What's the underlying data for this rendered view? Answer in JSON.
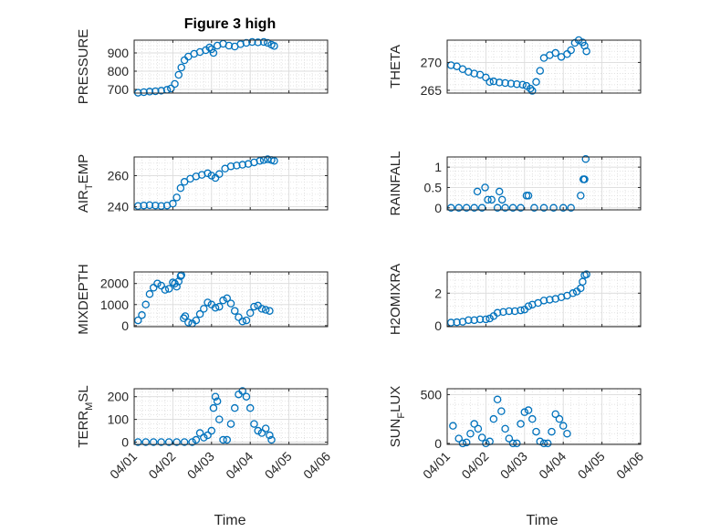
{
  "figure": {
    "title": "Figure 3 high",
    "x_axis_label": "Time",
    "x_tick_labels": [
      "04/01",
      "04/02",
      "04/03",
      "04/04",
      "04/05",
      "04/06"
    ],
    "marker_color": "#0072BD"
  },
  "chart_data": [
    {
      "type": "scatter",
      "name": "PRESSURE",
      "ylabel": "PRESSURE",
      "ylim": [
        680,
        970
      ],
      "yticks": [
        700,
        800,
        900
      ],
      "grid": true,
      "minor_grid": true,
      "xlim": [
        0,
        5
      ],
      "x_units": "days since 04/01",
      "points": [
        [
          0.1,
          682
        ],
        [
          0.25,
          685
        ],
        [
          0.4,
          688
        ],
        [
          0.55,
          690
        ],
        [
          0.7,
          693
        ],
        [
          0.85,
          698
        ],
        [
          0.95,
          705
        ],
        [
          1.05,
          730
        ],
        [
          1.15,
          780
        ],
        [
          1.22,
          820
        ],
        [
          1.3,
          860
        ],
        [
          1.4,
          880
        ],
        [
          1.55,
          895
        ],
        [
          1.7,
          905
        ],
        [
          1.85,
          915
        ],
        [
          1.95,
          930
        ],
        [
          2.0,
          920
        ],
        [
          2.05,
          900
        ],
        [
          2.15,
          940
        ],
        [
          2.3,
          950
        ],
        [
          2.45,
          940
        ],
        [
          2.6,
          935
        ],
        [
          2.75,
          948
        ],
        [
          2.9,
          955
        ],
        [
          3.05,
          960
        ],
        [
          3.2,
          958
        ],
        [
          3.35,
          960
        ],
        [
          3.45,
          955
        ],
        [
          3.55,
          945
        ],
        [
          3.62,
          938
        ]
      ]
    },
    {
      "type": "scatter",
      "name": "THETA",
      "ylabel": "THETA",
      "ylim": [
        264.5,
        274
      ],
      "yticks": [
        265,
        270
      ],
      "grid": true,
      "minor_grid": true,
      "xlim": [
        0,
        5
      ],
      "x_units": "days since 04/01",
      "points": [
        [
          0.1,
          269.5
        ],
        [
          0.25,
          269.3
        ],
        [
          0.4,
          268.8
        ],
        [
          0.55,
          268.3
        ],
        [
          0.7,
          268.0
        ],
        [
          0.85,
          267.8
        ],
        [
          1.0,
          267.3
        ],
        [
          1.1,
          266.5
        ],
        [
          1.2,
          266.6
        ],
        [
          1.35,
          266.4
        ],
        [
          1.5,
          266.3
        ],
        [
          1.65,
          266.2
        ],
        [
          1.8,
          266.1
        ],
        [
          1.95,
          266.0
        ],
        [
          2.05,
          265.8
        ],
        [
          2.15,
          265.3
        ],
        [
          2.2,
          264.9
        ],
        [
          2.3,
          266.5
        ],
        [
          2.4,
          268.5
        ],
        [
          2.5,
          270.8
        ],
        [
          2.65,
          271.3
        ],
        [
          2.8,
          271.7
        ],
        [
          2.95,
          271.0
        ],
        [
          3.1,
          271.5
        ],
        [
          3.2,
          272.2
        ],
        [
          3.3,
          273.5
        ],
        [
          3.4,
          274.0
        ],
        [
          3.5,
          273.6
        ],
        [
          3.55,
          273.0
        ],
        [
          3.6,
          272.0
        ]
      ]
    },
    {
      "type": "scatter",
      "name": "AIR_TEMP",
      "ylabel": "AIR_TEMP",
      "ylim": [
        238,
        272
      ],
      "yticks": [
        240,
        260
      ],
      "grid": true,
      "minor_grid": true,
      "xlim": [
        0,
        5
      ],
      "x_units": "days since 04/01",
      "points": [
        [
          0.1,
          240.5
        ],
        [
          0.25,
          240.8
        ],
        [
          0.4,
          241.0
        ],
        [
          0.55,
          240.8
        ],
        [
          0.7,
          240.5
        ],
        [
          0.85,
          240.8
        ],
        [
          1.0,
          242.0
        ],
        [
          1.1,
          246.0
        ],
        [
          1.2,
          252.0
        ],
        [
          1.3,
          256.0
        ],
        [
          1.45,
          258.0
        ],
        [
          1.6,
          259.5
        ],
        [
          1.75,
          260.5
        ],
        [
          1.9,
          261.5
        ],
        [
          2.0,
          260.0
        ],
        [
          2.1,
          258.5
        ],
        [
          2.2,
          261.0
        ],
        [
          2.35,
          264.5
        ],
        [
          2.5,
          266.0
        ],
        [
          2.65,
          266.5
        ],
        [
          2.8,
          267.0
        ],
        [
          2.95,
          267.5
        ],
        [
          3.1,
          268.5
        ],
        [
          3.25,
          269.5
        ],
        [
          3.35,
          270.0
        ],
        [
          3.45,
          270.5
        ],
        [
          3.55,
          270.0
        ],
        [
          3.62,
          269.5
        ]
      ]
    },
    {
      "type": "scatter",
      "name": "RAINFALL",
      "ylabel": "RAINFALL",
      "ylim": [
        -0.05,
        1.25
      ],
      "yticks": [
        0,
        0.5,
        1
      ],
      "tick_labels": [
        "0",
        "0.5",
        "1"
      ],
      "grid": true,
      "minor_grid": true,
      "xlim": [
        0,
        5
      ],
      "x_units": "days since 04/01",
      "points": [
        [
          0.1,
          0
        ],
        [
          0.3,
          0
        ],
        [
          0.5,
          0
        ],
        [
          0.7,
          0
        ],
        [
          0.78,
          0.4
        ],
        [
          0.9,
          0
        ],
        [
          0.98,
          0.5
        ],
        [
          1.05,
          0.2
        ],
        [
          1.15,
          0.2
        ],
        [
          1.3,
          0
        ],
        [
          1.35,
          0.4
        ],
        [
          1.42,
          0.2
        ],
        [
          1.5,
          0
        ],
        [
          1.7,
          0
        ],
        [
          1.9,
          0
        ],
        [
          2.05,
          0.3
        ],
        [
          2.1,
          0.3
        ],
        [
          2.25,
          0
        ],
        [
          2.5,
          0
        ],
        [
          2.75,
          0
        ],
        [
          3.0,
          0
        ],
        [
          3.2,
          0
        ],
        [
          3.45,
          0.3
        ],
        [
          3.52,
          0.7
        ],
        [
          3.55,
          0.7
        ],
        [
          3.58,
          1.2
        ]
      ]
    },
    {
      "type": "scatter",
      "name": "MIXDEPTH",
      "ylabel": "MIXDEPTH",
      "ylim": [
        -50,
        2550
      ],
      "yticks": [
        0,
        1000,
        2000
      ],
      "grid": true,
      "minor_grid": true,
      "xlim": [
        0,
        5
      ],
      "x_units": "days since 04/01",
      "points": [
        [
          0.1,
          250
        ],
        [
          0.2,
          500
        ],
        [
          0.3,
          1000
        ],
        [
          0.4,
          1500
        ],
        [
          0.5,
          1800
        ],
        [
          0.6,
          2000
        ],
        [
          0.7,
          1900
        ],
        [
          0.8,
          1700
        ],
        [
          0.9,
          1750
        ],
        [
          1.0,
          2050
        ],
        [
          1.05,
          2000
        ],
        [
          1.1,
          1850
        ],
        [
          1.15,
          2100
        ],
        [
          1.2,
          2350
        ],
        [
          1.22,
          2400
        ],
        [
          1.28,
          350
        ],
        [
          1.32,
          450
        ],
        [
          1.4,
          150
        ],
        [
          1.5,
          100
        ],
        [
          1.6,
          250
        ],
        [
          1.7,
          550
        ],
        [
          1.8,
          800
        ],
        [
          1.9,
          1100
        ],
        [
          2.0,
          1000
        ],
        [
          2.1,
          850
        ],
        [
          2.2,
          900
        ],
        [
          2.3,
          1200
        ],
        [
          2.4,
          1300
        ],
        [
          2.5,
          1050
        ],
        [
          2.6,
          700
        ],
        [
          2.7,
          400
        ],
        [
          2.8,
          200
        ],
        [
          2.9,
          250
        ],
        [
          3.0,
          600
        ],
        [
          3.1,
          900
        ],
        [
          3.2,
          950
        ],
        [
          3.3,
          800
        ],
        [
          3.4,
          750
        ],
        [
          3.5,
          700
        ]
      ]
    },
    {
      "type": "scatter",
      "name": "H2OMIXRA",
      "ylabel": "H2OMIXRA",
      "ylim": [
        -0.05,
        3.3
      ],
      "yticks": [
        0,
        2
      ],
      "grid": true,
      "minor_grid": true,
      "xlim": [
        0,
        5
      ],
      "x_units": "days since 04/01",
      "points": [
        [
          0.1,
          0.2
        ],
        [
          0.25,
          0.22
        ],
        [
          0.4,
          0.25
        ],
        [
          0.55,
          0.35
        ],
        [
          0.7,
          0.35
        ],
        [
          0.85,
          0.4
        ],
        [
          1.0,
          0.4
        ],
        [
          1.1,
          0.45
        ],
        [
          1.2,
          0.6
        ],
        [
          1.3,
          0.8
        ],
        [
          1.45,
          0.85
        ],
        [
          1.6,
          0.9
        ],
        [
          1.75,
          0.9
        ],
        [
          1.9,
          0.95
        ],
        [
          2.0,
          1.0
        ],
        [
          2.1,
          1.2
        ],
        [
          2.2,
          1.3
        ],
        [
          2.35,
          1.4
        ],
        [
          2.5,
          1.55
        ],
        [
          2.65,
          1.6
        ],
        [
          2.8,
          1.65
        ],
        [
          2.95,
          1.75
        ],
        [
          3.1,
          1.85
        ],
        [
          3.25,
          2.0
        ],
        [
          3.35,
          2.1
        ],
        [
          3.45,
          2.3
        ],
        [
          3.5,
          2.7
        ],
        [
          3.55,
          3.1
        ],
        [
          3.6,
          3.15
        ]
      ]
    },
    {
      "type": "scatter",
      "name": "TERR_MSL",
      "ylabel": "TERR_MSL",
      "ylim": [
        -10,
        235
      ],
      "yticks": [
        0,
        100,
        200
      ],
      "grid": true,
      "minor_grid": true,
      "xlim": [
        0,
        5
      ],
      "x_units": "days since 04/01",
      "points": [
        [
          0.1,
          0
        ],
        [
          0.3,
          0
        ],
        [
          0.5,
          0
        ],
        [
          0.7,
          0
        ],
        [
          0.9,
          0
        ],
        [
          1.1,
          0
        ],
        [
          1.3,
          0
        ],
        [
          1.5,
          0
        ],
        [
          1.6,
          10
        ],
        [
          1.7,
          40
        ],
        [
          1.8,
          20
        ],
        [
          1.9,
          30
        ],
        [
          2.0,
          50
        ],
        [
          2.05,
          150
        ],
        [
          2.1,
          200
        ],
        [
          2.15,
          180
        ],
        [
          2.2,
          100
        ],
        [
          2.3,
          10
        ],
        [
          2.4,
          10
        ],
        [
          2.5,
          80
        ],
        [
          2.6,
          150
        ],
        [
          2.7,
          210
        ],
        [
          2.8,
          225
        ],
        [
          2.9,
          200
        ],
        [
          3.0,
          150
        ],
        [
          3.1,
          80
        ],
        [
          3.2,
          50
        ],
        [
          3.3,
          40
        ],
        [
          3.4,
          60
        ],
        [
          3.5,
          30
        ],
        [
          3.55,
          10
        ]
      ]
    },
    {
      "type": "scatter",
      "name": "SUN_FLUX",
      "ylabel": "SUN_FLUX",
      "ylim": [
        -10,
        560
      ],
      "yticks": [
        0,
        500
      ],
      "grid": true,
      "minor_grid": true,
      "xlim": [
        0,
        5
      ],
      "x_units": "days since 04/01",
      "points": [
        [
          0.15,
          180
        ],
        [
          0.3,
          50
        ],
        [
          0.4,
          0
        ],
        [
          0.5,
          10
        ],
        [
          0.6,
          100
        ],
        [
          0.7,
          200
        ],
        [
          0.8,
          150
        ],
        [
          0.9,
          60
        ],
        [
          1.0,
          0
        ],
        [
          1.1,
          20
        ],
        [
          1.2,
          250
        ],
        [
          1.3,
          450
        ],
        [
          1.4,
          330
        ],
        [
          1.5,
          150
        ],
        [
          1.6,
          50
        ],
        [
          1.7,
          0
        ],
        [
          1.8,
          0
        ],
        [
          1.9,
          200
        ],
        [
          2.0,
          320
        ],
        [
          2.1,
          340
        ],
        [
          2.2,
          250
        ],
        [
          2.3,
          120
        ],
        [
          2.4,
          20
        ],
        [
          2.5,
          0
        ],
        [
          2.6,
          0
        ],
        [
          2.7,
          120
        ],
        [
          2.8,
          300
        ],
        [
          2.9,
          250
        ],
        [
          3.0,
          180
        ],
        [
          3.1,
          100
        ]
      ]
    }
  ]
}
